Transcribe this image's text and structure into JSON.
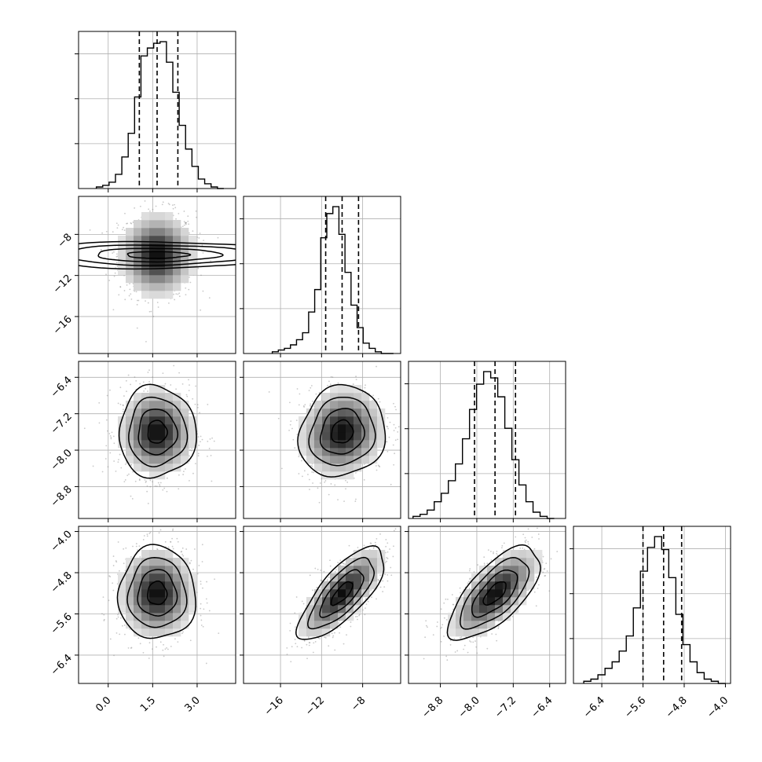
{
  "figure": {
    "kind": "corner-plot"
  },
  "style": {
    "hist_color": "#000000",
    "scatter_color": "#888888",
    "grid_color": "#b0b0b0",
    "quantile_line": "dashed"
  },
  "chart_data": {
    "type": "heatmap",
    "parameters": [
      {
        "range": [
          -1.0,
          4.3
        ],
        "ticks": [
          0.0,
          1.5,
          3.0
        ],
        "tick_labels": [
          "0.0",
          "1.5",
          "3.0"
        ],
        "quantiles": [
          1.05,
          1.65,
          2.35
        ],
        "hist_range": [
          -0.4,
          3.9
        ],
        "hist_counts": [
          1,
          2,
          4,
          9,
          20,
          35,
          58,
          84,
          89,
          92,
          93,
          80,
          61,
          40,
          25,
          14,
          6,
          3,
          1,
          0
        ]
      },
      {
        "range": [
          -19.6,
          -4.3
        ],
        "ticks": [
          -16,
          -12,
          -8
        ],
        "tick_labels": [
          "−16",
          "−12",
          "−8"
        ],
        "quantiles": [
          -11.6,
          -10.0,
          -8.4
        ],
        "hist_range": [
          -16.8,
          -5.0
        ],
        "hist_counts": [
          1,
          2,
          3,
          5,
          8,
          12,
          24,
          37,
          67,
          81,
          85,
          69,
          47,
          28,
          15,
          6,
          3,
          1,
          0,
          0
        ]
      },
      {
        "range": [
          -9.5,
          -6.05
        ],
        "ticks": [
          -8.8,
          -8.0,
          -7.2,
          -6.4
        ],
        "tick_labels": [
          "−8.8",
          "−8.0",
          "−7.2",
          "−6.4"
        ],
        "quantiles": [
          -8.05,
          -7.6,
          -7.15
        ],
        "hist_range": [
          -9.4,
          -6.3
        ],
        "hist_counts": [
          1,
          2,
          4,
          8,
          12,
          18,
          26,
          38,
          52,
          64,
          70,
          67,
          58,
          43,
          28,
          16,
          8,
          3,
          1,
          0
        ]
      },
      {
        "range": [
          -6.95,
          -3.9
        ],
        "ticks": [
          -6.4,
          -5.6,
          -4.8,
          -4.0
        ],
        "tick_labels": [
          "−6.4",
          "−5.6",
          "−4.8",
          "−4.0"
        ],
        "quantiles": [
          -5.6,
          -5.2,
          -4.85
        ],
        "hist_range": [
          -6.75,
          -4.0
        ],
        "hist_counts": [
          1,
          2,
          4,
          7,
          10,
          15,
          22,
          35,
          52,
          63,
          68,
          62,
          49,
          32,
          18,
          10,
          5,
          2,
          1,
          0
        ]
      }
    ],
    "joint": {
      "mean": [
        1.65,
        -10.0,
        -7.6,
        -5.2
      ],
      "std": [
        0.65,
        2.1,
        0.5,
        0.45
      ],
      "correlations": {
        "1-0": 0.0,
        "2-0": 0.0,
        "2-1": 0.1,
        "3-0": 0.0,
        "3-1": 0.75,
        "3-2": 0.68
      }
    },
    "grid": true,
    "legend": "none"
  }
}
